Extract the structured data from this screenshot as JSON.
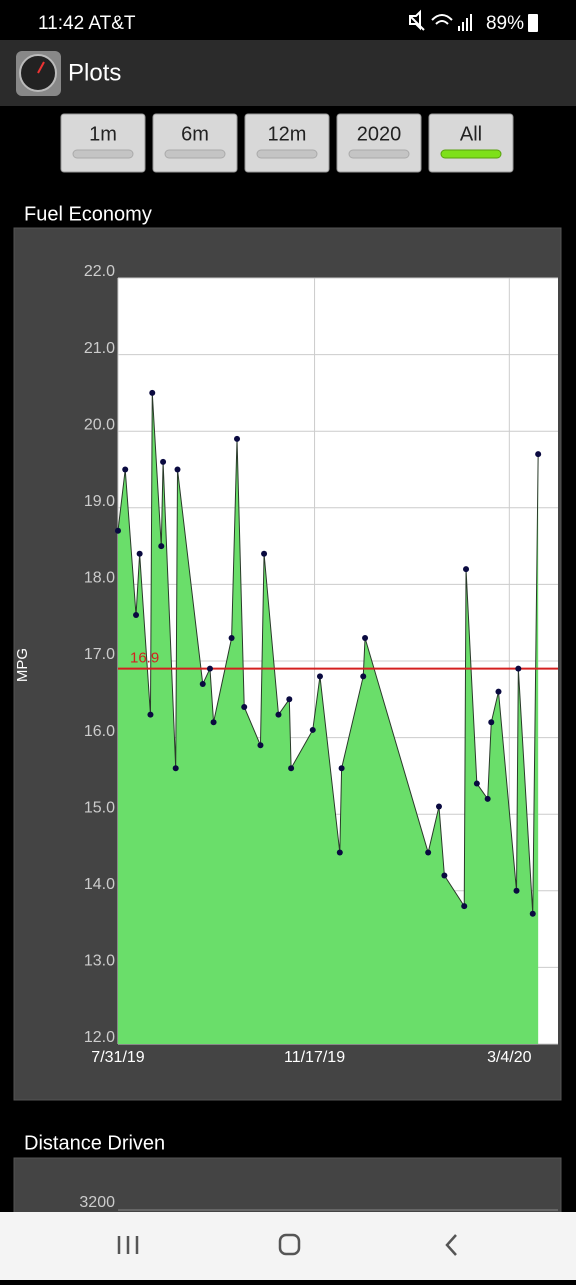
{
  "status_bar": {
    "time_carrier": "11:42 AT&T",
    "battery": "89%"
  },
  "app_bar": {
    "title": "Plots"
  },
  "range_buttons": {
    "labels": [
      "1m",
      "6m",
      "12m",
      "2020",
      "All"
    ],
    "selected_index": 4
  },
  "chart_data": [
    {
      "type": "area",
      "title": "Fuel Economy",
      "y_label": "MPG",
      "x": [
        "2019-07-31",
        "2019-08-04",
        "2019-08-10",
        "2019-08-12",
        "2019-08-18",
        "2019-08-19",
        "2019-08-24",
        "2019-08-25",
        "2019-09-01",
        "2019-09-02",
        "2019-09-16",
        "2019-09-20",
        "2019-09-22",
        "2019-10-02",
        "2019-10-05",
        "2019-10-09",
        "2019-10-18",
        "2019-10-20",
        "2019-10-28",
        "2019-11-03",
        "2019-11-04",
        "2019-11-16",
        "2019-11-20",
        "2019-12-01",
        "2019-12-02",
        "2019-12-14",
        "2019-12-15",
        "2020-01-19",
        "2020-01-25",
        "2020-01-28",
        "2020-02-08",
        "2020-02-09",
        "2020-02-15",
        "2020-02-21",
        "2020-02-23",
        "2020-02-27",
        "2020-03-08",
        "2020-03-09",
        "2020-03-17",
        "2020-03-20"
      ],
      "values": [
        18.7,
        19.5,
        17.6,
        18.4,
        16.3,
        20.5,
        18.5,
        19.6,
        15.6,
        19.5,
        16.7,
        16.9,
        16.2,
        17.3,
        19.9,
        16.4,
        15.9,
        18.4,
        16.3,
        16.5,
        15.6,
        16.1,
        16.8,
        14.5,
        15.6,
        16.8,
        17.3,
        14.5,
        15.1,
        14.2,
        13.8,
        18.2,
        15.4,
        15.2,
        16.2,
        16.6,
        14.0,
        16.9,
        13.7,
        19.7
      ],
      "color": "#6ade6a",
      "line_color": "#2a3a2a",
      "point_color": "#0a0a40",
      "ylim": [
        12,
        22
      ],
      "yticks": [
        {
          "value": 12,
          "label": "12.0"
        },
        {
          "value": 13,
          "label": "13.0"
        },
        {
          "value": 14,
          "label": "14.0"
        },
        {
          "value": 15,
          "label": "15.0"
        },
        {
          "value": 16,
          "label": "16.0"
        },
        {
          "value": 17,
          "label": "17.0"
        },
        {
          "value": 18,
          "label": "18.0"
        },
        {
          "value": 19,
          "label": "19.0"
        },
        {
          "value": 20,
          "label": "20.0"
        },
        {
          "value": 21,
          "label": "21.0"
        },
        {
          "value": 22,
          "label": "22.0"
        }
      ],
      "xlim": [
        "2019-07-31",
        "2020-03-31"
      ],
      "xticks": [
        {
          "value": "2019-07-31",
          "label": "7/31/19"
        },
        {
          "value": "2019-11-17",
          "label": "11/17/19"
        },
        {
          "value": "2020-03-04",
          "label": "3/4/20"
        }
      ],
      "grid": true,
      "reference_line": {
        "value": 16.9,
        "color": "#d42020"
      }
    },
    {
      "type": "bar",
      "title": "Distance Driven",
      "yticks": [
        3200
      ]
    }
  ]
}
